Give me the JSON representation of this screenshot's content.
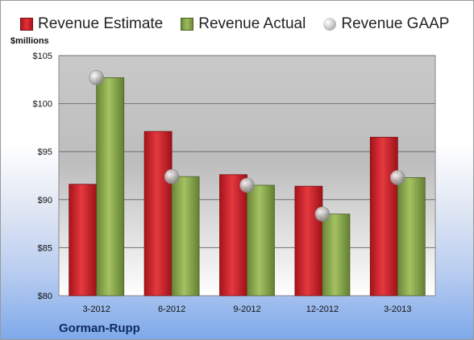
{
  "legend": {
    "estimate": "Revenue Estimate",
    "actual": "Revenue Actual",
    "gaap": "Revenue GAAP"
  },
  "units_label": "$millions",
  "company": "Gorman-Rupp",
  "colors": {
    "estimate": "#d42a30",
    "actual": "#8fb050",
    "gaap": "#b8b8b8"
  },
  "chart_data": {
    "type": "bar",
    "title": "",
    "xlabel": "",
    "ylabel": "$millions",
    "ylim": [
      80,
      105
    ],
    "y_ticks": [
      80,
      85,
      90,
      95,
      100,
      105
    ],
    "y_tick_labels": [
      "$80",
      "$85",
      "$90",
      "$95",
      "$100",
      "$105"
    ],
    "categories": [
      "3-2012",
      "6-2012",
      "9-2012",
      "12-2012",
      "3-2013"
    ],
    "series": [
      {
        "name": "Revenue Estimate",
        "kind": "bar",
        "values": [
          91.6,
          97.1,
          92.6,
          91.4,
          96.5
        ]
      },
      {
        "name": "Revenue Actual",
        "kind": "bar",
        "values": [
          102.7,
          92.4,
          91.5,
          88.5,
          92.3
        ]
      },
      {
        "name": "Revenue GAAP",
        "kind": "marker",
        "values": [
          102.7,
          92.4,
          91.5,
          88.5,
          92.3
        ]
      }
    ],
    "legend_position": "top",
    "grid": true
  }
}
